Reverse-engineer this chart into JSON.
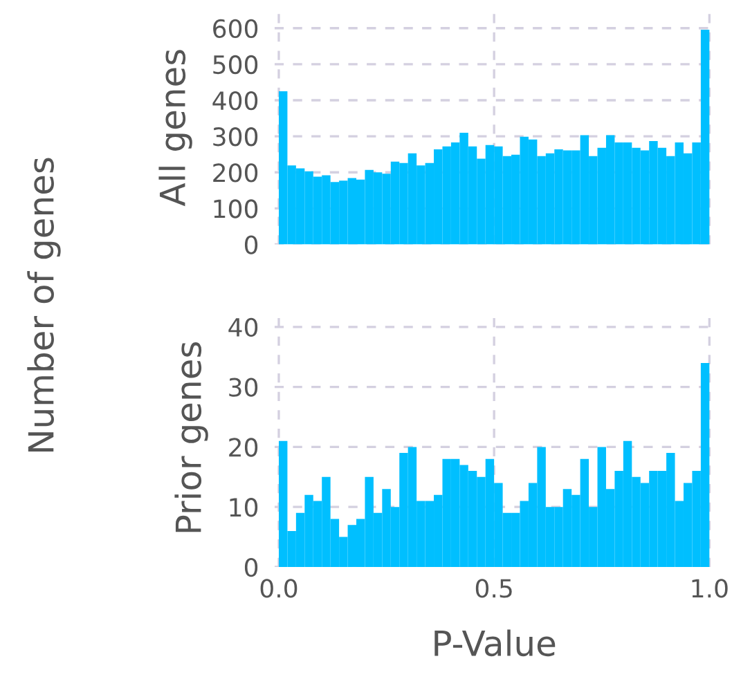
{
  "chart_data": [
    {
      "type": "histogram",
      "ylabel": "All genes",
      "annotations": [
        "Number of genes"
      ],
      "color": "#00bfff",
      "bins": [
        0.0,
        0.02,
        0.04,
        0.06,
        0.08,
        0.1,
        0.12,
        0.14,
        0.16,
        0.18,
        0.2,
        0.22,
        0.24,
        0.26,
        0.28,
        0.3,
        0.32,
        0.34,
        0.36,
        0.38,
        0.4,
        0.42,
        0.44,
        0.46,
        0.48,
        0.5,
        0.52,
        0.54,
        0.56,
        0.58,
        0.6,
        0.62,
        0.64,
        0.66,
        0.68,
        0.7,
        0.72,
        0.74,
        0.76,
        0.78,
        0.8,
        0.82,
        0.84,
        0.86,
        0.88,
        0.9,
        0.92,
        0.94,
        0.96,
        0.98,
        1.0
      ],
      "values": [
        425,
        219,
        211,
        203,
        188,
        192,
        173,
        177,
        184,
        180,
        207,
        200,
        196,
        230,
        226,
        253,
        219,
        226,
        264,
        272,
        283,
        310,
        272,
        238,
        276,
        272,
        245,
        249,
        299,
        291,
        245,
        253,
        264,
        261,
        261,
        303,
        245,
        268,
        303,
        283,
        283,
        268,
        261,
        287,
        268,
        245,
        283,
        253,
        283,
        596
      ],
      "xlim": [
        -0.01,
        1.01
      ],
      "ylim": [
        0,
        650
      ],
      "xticks": [
        0.0,
        0.5,
        1.0
      ],
      "yticks": [
        0,
        100,
        200,
        300,
        400,
        500,
        600
      ],
      "grid": true,
      "tick_labels": "y"
    },
    {
      "type": "histogram",
      "ylabel": "Prior genes",
      "xlabel": "P-Value",
      "color": "#00bfff",
      "bins": [
        0.0,
        0.02,
        0.04,
        0.06,
        0.08,
        0.1,
        0.12,
        0.14,
        0.16,
        0.18,
        0.2,
        0.22,
        0.24,
        0.26,
        0.28,
        0.3,
        0.32,
        0.34,
        0.36,
        0.38,
        0.4,
        0.42,
        0.44,
        0.46,
        0.48,
        0.5,
        0.52,
        0.54,
        0.56,
        0.58,
        0.6,
        0.62,
        0.64,
        0.66,
        0.68,
        0.7,
        0.72,
        0.74,
        0.76,
        0.78,
        0.8,
        0.82,
        0.84,
        0.86,
        0.88,
        0.9,
        0.92,
        0.94,
        0.96,
        0.98,
        1.0
      ],
      "values": [
        21,
        6,
        9,
        12,
        11,
        15,
        8,
        5,
        7,
        8,
        15,
        9,
        13,
        10,
        19,
        20,
        11,
        11,
        12,
        18,
        18,
        17,
        16,
        15,
        18,
        14,
        9,
        9,
        11,
        14,
        20,
        10,
        10,
        13,
        12,
        18,
        10,
        20,
        13,
        16,
        21,
        15,
        14,
        16,
        16,
        19,
        11,
        14,
        16,
        34
      ],
      "xlim": [
        -0.01,
        1.01
      ],
      "ylim": [
        0,
        43
      ],
      "xticks": [
        {
          "value": 0.0,
          "label": "0.0"
        },
        {
          "value": 0.5,
          "label": "0.5"
        },
        {
          "value": 1.0,
          "label": "1.0"
        }
      ],
      "yticks": [
        0,
        10,
        20,
        30,
        40
      ],
      "grid": true
    }
  ]
}
